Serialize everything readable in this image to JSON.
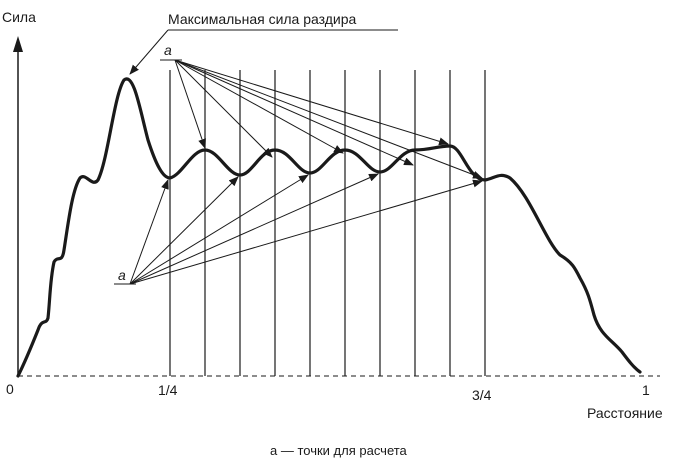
{
  "axes": {
    "y_label": "Сила",
    "x_label": "Расстояние",
    "x_ticks": [
      "0",
      "1/4",
      "3/4",
      "1"
    ]
  },
  "annotation": {
    "max_force": "Максимальная сила раздира"
  },
  "points": {
    "top_marker": "a",
    "bottom_marker": "a"
  },
  "caption": "а — точки для расчета"
}
